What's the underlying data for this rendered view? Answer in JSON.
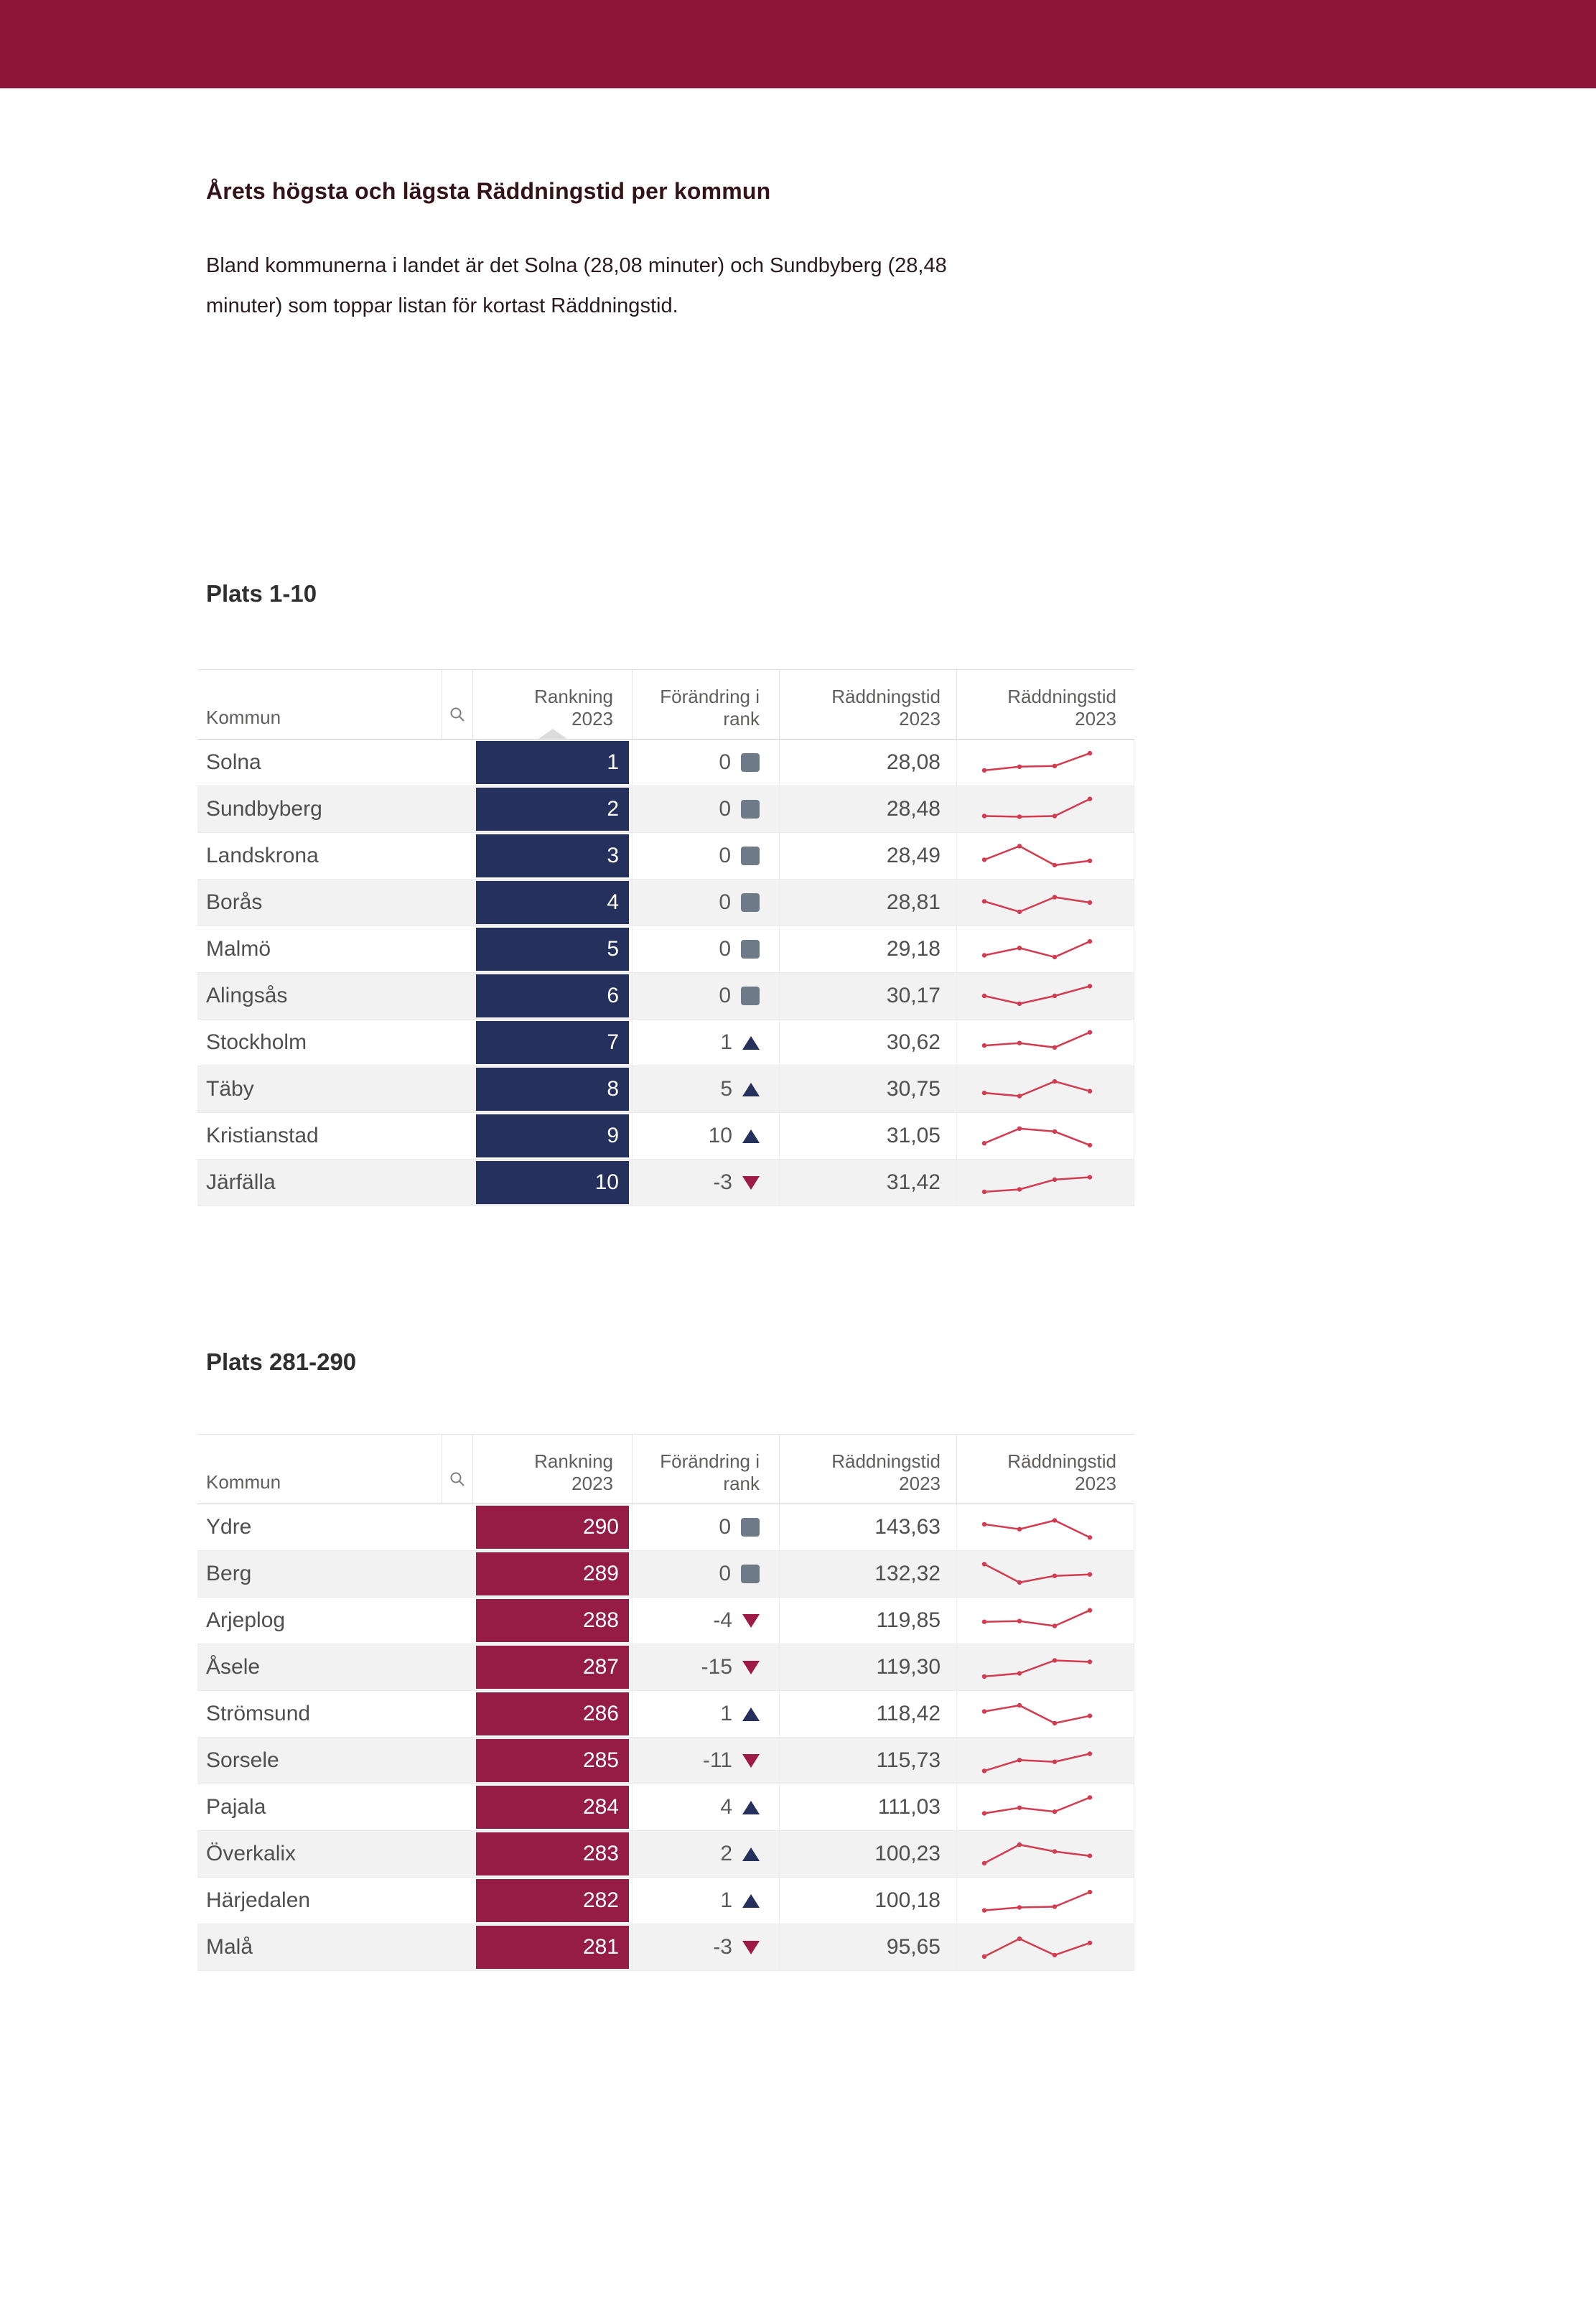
{
  "header": {
    "title": "Årets högsta och lägsta Räddningstid per kommun",
    "intro_line1": "Bland kommunerna i landet är det Solna (28,08 minuter) och Sundbyberg (28,48",
    "intro_line2": "minuter) som toppar listan för kortast Räddningstid."
  },
  "columns": {
    "kommun": "Kommun",
    "rank_l1": "Rankning",
    "rank_l2": "2023",
    "change_l1": "Förändring i",
    "change_l2": "rank",
    "time_l1": "Räddningstid",
    "time_l2": "2023",
    "trend_l1": "Räddningstid",
    "trend_l2": "2023"
  },
  "colors": {
    "banner": "#8D1638",
    "rank_top_list": "#25305C",
    "rank_bottom_list": "#951C44",
    "change_up": "#25305C",
    "change_down": "#9E1B47",
    "change_neutral": "#6E7A87",
    "spark": "#D23B50"
  },
  "sections": [
    {
      "heading": "Plats 1-10",
      "rank_color": "#25305C",
      "sort_indicator": "ascending",
      "rows": [
        {
          "kommun": "Solna",
          "rank": "1",
          "change": "0",
          "dir": "none",
          "time": "28,08",
          "trend": [
            0.18,
            0.33,
            0.36,
            0.88
          ]
        },
        {
          "kommun": "Sundbyberg",
          "rank": "2",
          "change": "0",
          "dir": "none",
          "time": "28,48",
          "trend": [
            0.22,
            0.19,
            0.22,
            0.92
          ]
        },
        {
          "kommun": "Landskrona",
          "rank": "3",
          "change": "0",
          "dir": "none",
          "time": "28,49",
          "trend": [
            0.34,
            0.9,
            0.12,
            0.3
          ]
        },
        {
          "kommun": "Borås",
          "rank": "4",
          "change": "0",
          "dir": "none",
          "time": "28,81",
          "trend": [
            0.55,
            0.12,
            0.72,
            0.5
          ]
        },
        {
          "kommun": "Malmö",
          "rank": "5",
          "change": "0",
          "dir": "none",
          "time": "29,18",
          "trend": [
            0.25,
            0.55,
            0.18,
            0.82
          ]
        },
        {
          "kommun": "Alingsås",
          "rank": "6",
          "change": "0",
          "dir": "none",
          "time": "30,17",
          "trend": [
            0.5,
            0.18,
            0.5,
            0.9
          ]
        },
        {
          "kommun": "Stockholm",
          "rank": "7",
          "change": "1",
          "dir": "up",
          "time": "30,62",
          "trend": [
            0.38,
            0.48,
            0.3,
            0.92
          ]
        },
        {
          "kommun": "Täby",
          "rank": "8",
          "change": "5",
          "dir": "up",
          "time": "30,75",
          "trend": [
            0.35,
            0.22,
            0.82,
            0.42
          ]
        },
        {
          "kommun": "Kristianstad",
          "rank": "9",
          "change": "10",
          "dir": "up",
          "time": "31,05",
          "trend": [
            0.2,
            0.8,
            0.68,
            0.12
          ]
        },
        {
          "kommun": "Järfälla",
          "rank": "10",
          "change": "-3",
          "dir": "down",
          "time": "31,42",
          "trend": [
            0.12,
            0.22,
            0.62,
            0.72
          ]
        }
      ]
    },
    {
      "heading": "Plats 281-290",
      "rank_color": "#951C44",
      "sort_indicator": "none",
      "rows": [
        {
          "kommun": "Ydre",
          "rank": "290",
          "change": "0",
          "dir": "none",
          "time": "143,63",
          "trend": [
            0.62,
            0.42,
            0.78,
            0.08
          ]
        },
        {
          "kommun": "Berg",
          "rank": "289",
          "change": "0",
          "dir": "none",
          "time": "132,32",
          "trend": [
            0.9,
            0.15,
            0.42,
            0.48
          ]
        },
        {
          "kommun": "Arjeplog",
          "rank": "288",
          "change": "-4",
          "dir": "down",
          "time": "119,85",
          "trend": [
            0.45,
            0.48,
            0.28,
            0.92
          ]
        },
        {
          "kommun": "Åsele",
          "rank": "287",
          "change": "-15",
          "dir": "down",
          "time": "119,30",
          "trend": [
            0.12,
            0.25,
            0.78,
            0.72
          ]
        },
        {
          "kommun": "Strömsund",
          "rank": "286",
          "change": "1",
          "dir": "up",
          "time": "118,42",
          "trend": [
            0.6,
            0.85,
            0.12,
            0.42
          ]
        },
        {
          "kommun": "Sorsele",
          "rank": "285",
          "change": "-11",
          "dir": "down",
          "time": "115,73",
          "trend": [
            0.08,
            0.52,
            0.45,
            0.78
          ]
        },
        {
          "kommun": "Pajala",
          "rank": "284",
          "change": "4",
          "dir": "up",
          "time": "111,03",
          "trend": [
            0.25,
            0.48,
            0.32,
            0.9
          ]
        },
        {
          "kommun": "Överkalix",
          "rank": "283",
          "change": "2",
          "dir": "up",
          "time": "100,23",
          "trend": [
            0.12,
            0.88,
            0.6,
            0.42
          ]
        },
        {
          "kommun": "Härjedalen",
          "rank": "282",
          "change": "1",
          "dir": "up",
          "time": "100,18",
          "trend": [
            0.1,
            0.22,
            0.25,
            0.85
          ]
        },
        {
          "kommun": "Malå",
          "rank": "281",
          "change": "-3",
          "dir": "down",
          "time": "95,65",
          "trend": [
            0.12,
            0.85,
            0.18,
            0.68
          ]
        }
      ]
    }
  ]
}
